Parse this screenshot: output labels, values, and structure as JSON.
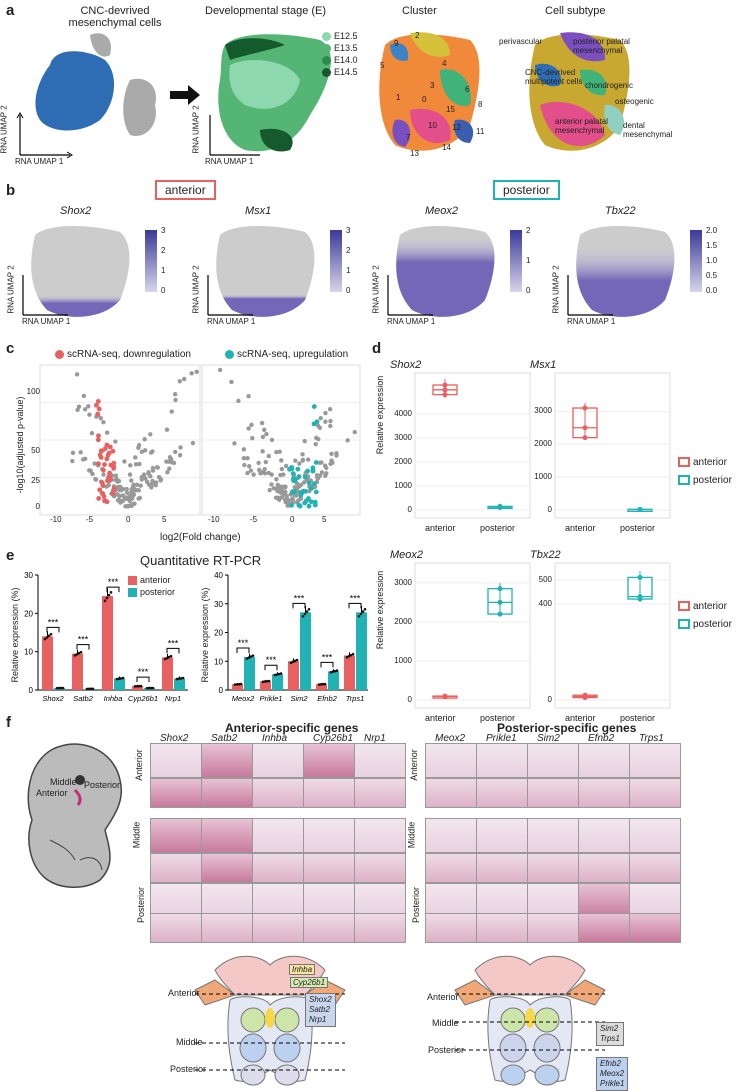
{
  "colors": {
    "anterior": "#e8605f",
    "posterior": "#21b3b3",
    "umap_blue": "#2e6db4",
    "feature_dark": "#3a3a99",
    "feature_light": "#d9d4ea"
  },
  "panel_a": {
    "label": "a",
    "titles": [
      "CNC-devrived mesenchymal cells",
      "Developmental stage (E)",
      "Cluster",
      "Cell subtype"
    ],
    "axis_y": "RNA UMAP 2",
    "axis_x": "RNA UMAP 1",
    "stages": [
      {
        "name": "E12.5",
        "color": "#8ed8b0"
      },
      {
        "name": "E13.5",
        "color": "#54b574"
      },
      {
        "name": "E14.0",
        "color": "#2a8c4a"
      },
      {
        "name": "E14.5",
        "color": "#145a2c"
      }
    ],
    "cluster_numbers": [
      "2",
      "9",
      "5",
      "4",
      "1",
      "3",
      "0",
      "6",
      "15",
      "8",
      "10",
      "12",
      "11",
      "7",
      "13",
      "14"
    ],
    "subtypes": [
      "perivascular",
      "posterior palatal mesenchymal",
      "CNC-devrived multipotent cells",
      "chondrogenic",
      "osteogenic",
      "anterior palatal mesenchymal",
      "dental mesenchymal"
    ]
  },
  "panel_b": {
    "label": "b",
    "anterior_label": "anterior",
    "posterior_label": "posterior",
    "genes": [
      {
        "name": "Shox2",
        "ticks": [
          "3",
          "2",
          "1",
          "0"
        ]
      },
      {
        "name": "Msx1",
        "ticks": [
          "3",
          "2",
          "1",
          "0"
        ]
      },
      {
        "name": "Meox2",
        "ticks": [
          "2",
          "1",
          "0"
        ]
      },
      {
        "name": "Tbx22",
        "ticks": [
          "2.0",
          "1.5",
          "1.0",
          "0.5",
          "0.0"
        ]
      }
    ],
    "axis_y": "RNA UMAP 2",
    "axis_x": "RNA UMAP 1"
  },
  "panel_c": {
    "label": "c",
    "legend_down": "scRNA-seq, downregulation",
    "legend_up": "scRNA-seq, upregulation",
    "ylabel": "-log10(adjusted p-value)",
    "xlabel": "log2(Fold change)",
    "yticks": [
      "0",
      "25",
      "50",
      "100"
    ],
    "xticks": [
      "-10",
      "-5",
      "0",
      "5"
    ]
  },
  "panel_d": {
    "label": "d",
    "ylabel": "Relative expression",
    "legend": [
      "anterior",
      "posterior"
    ],
    "plots": [
      {
        "gene": "Shox2",
        "yticks": [
          "4000",
          "3000",
          "2000",
          "1000",
          "0"
        ],
        "xcats": [
          "anterior",
          "posterior"
        ]
      },
      {
        "gene": "Msx1",
        "yticks": [
          "3000",
          "2000",
          "1000",
          "0"
        ],
        "xcats": [
          "anterior",
          "posterior"
        ]
      },
      {
        "gene": "Meox2",
        "yticks": [
          "3000",
          "2000",
          "1000",
          "0"
        ],
        "xcats": [
          "anterior",
          "posterior"
        ]
      },
      {
        "gene": "Tbx22",
        "yticks": [
          "500",
          "400",
          "0"
        ],
        "xcats": [
          "anterior",
          "posterior"
        ]
      }
    ]
  },
  "panel_e": {
    "label": "e",
    "title": "Quantitative RT-PCR",
    "ylabel": "Relative expression (%)",
    "legend": [
      "anterior",
      "posterior"
    ],
    "sig": "***",
    "left_yticks": [
      "30",
      "20",
      "10",
      "0"
    ],
    "right_yticks": [
      "40",
      "30",
      "20",
      "10",
      "0"
    ]
  },
  "panel_f": {
    "label": "f",
    "anterior_title": "Anterior-specific genes",
    "posterior_title": "Posterior-specific genes",
    "anterior_genes": [
      "Shox2",
      "Satb2",
      "Inhba",
      "Cyp26b1",
      "Nrp1"
    ],
    "posterior_genes": [
      "Meox2",
      "Prikle1",
      "Sim2",
      "Efnb2",
      "Trps1"
    ],
    "rows": [
      "Anterior",
      "Middle",
      "Posterior"
    ],
    "embryo_labels": [
      "Middle",
      "Anterior",
      "Posterior"
    ],
    "schematic_left": [
      "Inhba",
      "Cyp26b1",
      "Shox2",
      "Satb2",
      "Nrp1"
    ],
    "schematic_right_top": [
      "Sim2",
      "Trps1"
    ],
    "schematic_right_bottom": [
      "Efnb2",
      "Meox2",
      "Prikle1"
    ],
    "schematic_levels": [
      "Anterior",
      "Middle",
      "Posterior"
    ]
  },
  "chart_data": [
    {
      "type": "bar",
      "title": "Quantitative RT-PCR",
      "ylabel": "Relative expression (%)",
      "categories": [
        "Shox2",
        "Satb2",
        "Inhba",
        "Cyp26b1",
        "Nrp1"
      ],
      "series": [
        {
          "name": "anterior",
          "values": [
            14,
            9.5,
            24.5,
            1,
            8.5
          ]
        },
        {
          "name": "posterior",
          "values": [
            0.5,
            0.3,
            3,
            0.5,
            3
          ]
        }
      ],
      "ylim": [
        0,
        30
      ]
    },
    {
      "type": "bar",
      "ylabel": "Relative expression (%)",
      "categories": [
        "Meox2",
        "Prikle1",
        "Sim2",
        "Efnb2",
        "Trps1"
      ],
      "series": [
        {
          "name": "anterior",
          "values": [
            2,
            3,
            10,
            2,
            12
          ]
        },
        {
          "name": "posterior",
          "values": [
            11.5,
            5.5,
            27,
            6.5,
            27
          ]
        }
      ],
      "ylim": [
        0,
        40
      ]
    }
  ]
}
